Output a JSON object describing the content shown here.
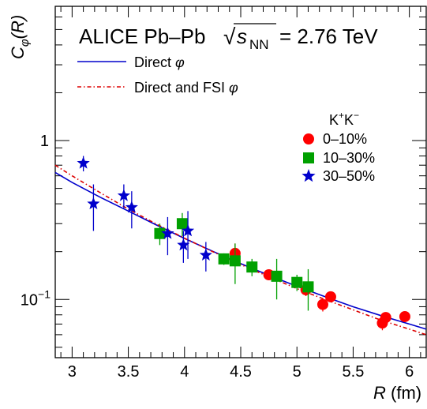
{
  "chart_data": {
    "type": "scatter",
    "title": "ALICE Pb–Pb",
    "energy": {
      "prefix": "√",
      "symbol": "s",
      "subscript": "NN",
      "value": "= 2.76 TeV"
    },
    "ylabel": {
      "main": "C",
      "sub": "φ",
      "arg": "(R)"
    },
    "xlabel": {
      "main": "R",
      "unit": "(fm)"
    },
    "xlim": [
      2.85,
      6.15
    ],
    "ylim": [
      0.043,
      7.0
    ],
    "yscale": "log",
    "x_ticks": [
      {
        "value": 3,
        "label": "3"
      },
      {
        "value": 3.5,
        "label": "3.5"
      },
      {
        "value": 4,
        "label": "4"
      },
      {
        "value": 4.5,
        "label": "4.5"
      },
      {
        "value": 5,
        "label": "5"
      },
      {
        "value": 5.5,
        "label": "5.5"
      },
      {
        "value": 6,
        "label": "6"
      }
    ],
    "y_ticks": [
      {
        "value": 1,
        "base": "1",
        "exp": ""
      },
      {
        "value": 0.1,
        "base": "10",
        "exp": "−1"
      }
    ],
    "legend_title": {
      "base": "K",
      "sup1": "+",
      "mid": "K",
      "sup2": "−"
    },
    "curves": [
      {
        "name": "Direct φ",
        "label_text": "Direct ",
        "label_sym": "φ",
        "color": "#0000cc",
        "style": "solid",
        "x": [
          2.85,
          3.0,
          3.25,
          3.5,
          3.75,
          4.0,
          4.25,
          4.5,
          4.75,
          5.0,
          5.25,
          5.5,
          5.75,
          6.0,
          6.15
        ],
        "y": [
          0.63,
          0.545,
          0.44,
          0.36,
          0.294,
          0.242,
          0.201,
          0.168,
          0.142,
          0.121,
          0.104,
          0.09,
          0.079,
          0.07,
          0.065
        ]
      },
      {
        "name": "Direct and FSI φ",
        "label_text": "Direct and FSI ",
        "label_sym": "φ",
        "color": "#dd0000",
        "style": "dashdot",
        "x": [
          2.85,
          3.0,
          3.25,
          3.5,
          3.75,
          4.0,
          4.25,
          4.5,
          4.75,
          5.0,
          5.25,
          5.5,
          5.75,
          6.0,
          6.15
        ],
        "y": [
          0.7,
          0.6,
          0.47,
          0.37,
          0.298,
          0.243,
          0.2,
          0.166,
          0.139,
          0.117,
          0.1,
          0.086,
          0.074,
          0.065,
          0.06
        ]
      }
    ],
    "series": [
      {
        "name": "0–10%",
        "marker": "circle",
        "color": "#ff0000",
        "points": [
          {
            "x": 4.45,
            "y": 0.195,
            "err": 0.03
          },
          {
            "x": 4.75,
            "y": 0.143,
            "err": 0.01
          },
          {
            "x": 5.08,
            "y": 0.115,
            "err": 0.01
          },
          {
            "x": 5.23,
            "y": 0.093,
            "err": 0.009
          },
          {
            "x": 5.3,
            "y": 0.104,
            "err": 0.008
          },
          {
            "x": 5.76,
            "y": 0.071,
            "err": 0.007
          },
          {
            "x": 5.79,
            "y": 0.077,
            "err": 0.006
          },
          {
            "x": 5.96,
            "y": 0.078,
            "err": 0.005
          }
        ]
      },
      {
        "name": "10–30%",
        "marker": "square",
        "color": "#00a000",
        "points": [
          {
            "x": 3.78,
            "y": 0.26,
            "err": 0.04
          },
          {
            "x": 3.98,
            "y": 0.3,
            "err": 0.05
          },
          {
            "x": 4.35,
            "y": 0.18,
            "err": 0.015
          },
          {
            "x": 4.45,
            "y": 0.175,
            "err": 0.05
          },
          {
            "x": 4.6,
            "y": 0.16,
            "err": 0.02
          },
          {
            "x": 4.82,
            "y": 0.14,
            "err": 0.04
          },
          {
            "x": 5.0,
            "y": 0.128,
            "err": 0.015
          },
          {
            "x": 5.1,
            "y": 0.12,
            "err": 0.035
          }
        ]
      },
      {
        "name": "30–50%",
        "marker": "star",
        "color": "#0000cc",
        "points": [
          {
            "x": 3.1,
            "y": 0.72,
            "err": 0.08
          },
          {
            "x": 3.19,
            "y": 0.4,
            "err": 0.13
          },
          {
            "x": 3.46,
            "y": 0.45,
            "err": 0.08
          },
          {
            "x": 3.53,
            "y": 0.38,
            "err": 0.1
          },
          {
            "x": 3.85,
            "y": 0.26,
            "err": 0.07
          },
          {
            "x": 3.99,
            "y": 0.22,
            "err": 0.05
          },
          {
            "x": 4.03,
            "y": 0.27,
            "err": 0.09
          },
          {
            "x": 4.19,
            "y": 0.19,
            "err": 0.04
          }
        ]
      }
    ]
  }
}
